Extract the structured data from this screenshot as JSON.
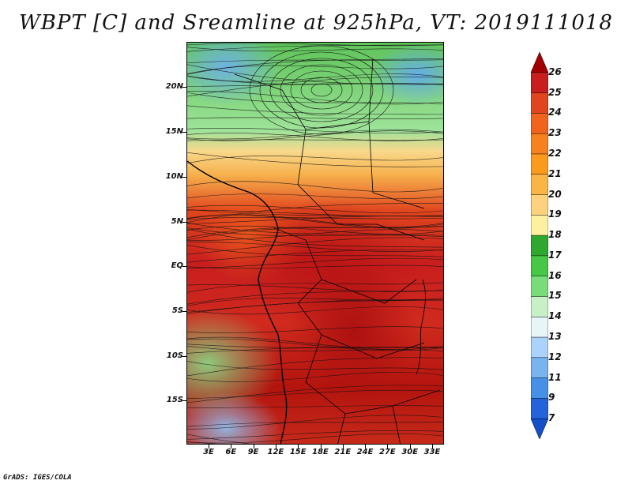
{
  "title": "WBPT [C] and Sreamline at 925hPa, VT: 2019111018",
  "credit": "GrADS: IGES/COLA",
  "map": {
    "y_ticks": [
      "20N",
      "15N",
      "10N",
      "5N",
      "EQ",
      "5S",
      "10S",
      "15S"
    ],
    "x_ticks": [
      "3E",
      "6E",
      "9E",
      "12E",
      "15E",
      "18E",
      "21E",
      "24E",
      "27E",
      "30E",
      "33E"
    ]
  },
  "colorbar": {
    "levels": [
      "26",
      "25",
      "24",
      "23",
      "22",
      "21",
      "20",
      "19",
      "18",
      "17",
      "16",
      "15",
      "14",
      "13",
      "12",
      "11",
      "9",
      "7"
    ],
    "colors": [
      "#a00000",
      "#c81e1e",
      "#e0451e",
      "#f0641e",
      "#f5821e",
      "#fa9b1e",
      "#fbb446",
      "#fcd27d",
      "#fff0a0",
      "#2fa82f",
      "#46c846",
      "#78dc78",
      "#c8f0c8",
      "#e6f5f5",
      "#aad2fa",
      "#78b4f0",
      "#4690e6",
      "#2364dc",
      "#1450c8"
    ]
  }
}
